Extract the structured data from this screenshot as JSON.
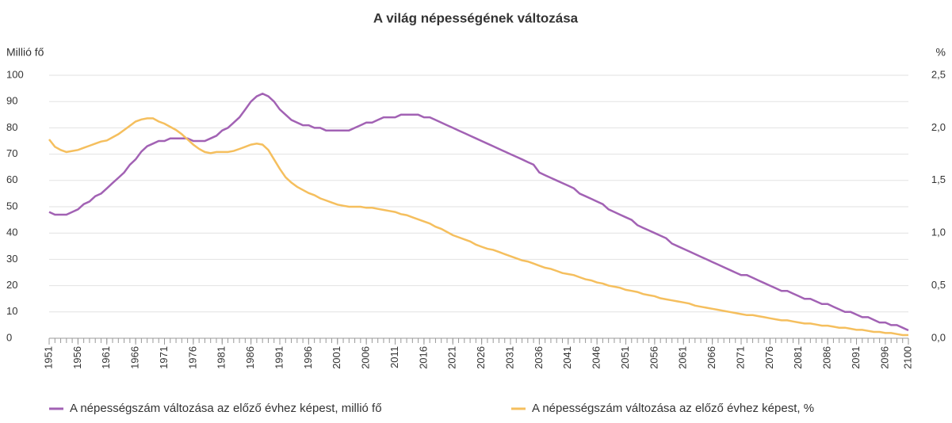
{
  "chart_data": {
    "type": "line",
    "title": "A világ népességének változása",
    "ylabel": "Millió fő",
    "y2label": "%",
    "x": [
      1951,
      1952,
      1953,
      1954,
      1955,
      1956,
      1957,
      1958,
      1959,
      1960,
      1961,
      1962,
      1963,
      1964,
      1965,
      1966,
      1967,
      1968,
      1969,
      1970,
      1971,
      1972,
      1973,
      1974,
      1975,
      1976,
      1977,
      1978,
      1979,
      1980,
      1981,
      1982,
      1983,
      1984,
      1985,
      1986,
      1987,
      1988,
      1989,
      1990,
      1991,
      1992,
      1993,
      1994,
      1995,
      1996,
      1997,
      1998,
      1999,
      2000,
      2001,
      2002,
      2003,
      2004,
      2005,
      2006,
      2007,
      2008,
      2009,
      2010,
      2011,
      2012,
      2013,
      2014,
      2015,
      2016,
      2017,
      2018,
      2019,
      2020,
      2021,
      2022,
      2023,
      2024,
      2025,
      2026,
      2027,
      2028,
      2029,
      2030,
      2031,
      2032,
      2033,
      2034,
      2035,
      2036,
      2037,
      2038,
      2039,
      2040,
      2041,
      2042,
      2043,
      2044,
      2045,
      2046,
      2047,
      2048,
      2049,
      2050,
      2051,
      2052,
      2053,
      2054,
      2055,
      2056,
      2057,
      2058,
      2059,
      2060,
      2061,
      2062,
      2063,
      2064,
      2065,
      2066,
      2067,
      2068,
      2069,
      2070,
      2071,
      2072,
      2073,
      2074,
      2075,
      2076,
      2077,
      2078,
      2079,
      2080,
      2081,
      2082,
      2083,
      2084,
      2085,
      2086,
      2087,
      2088,
      2089,
      2090,
      2091,
      2092,
      2093,
      2094,
      2095,
      2096,
      2097,
      2098,
      2099,
      2100
    ],
    "series": [
      {
        "name": "A népességszám változása az előző évhez képest, millió fő",
        "color": "#a262b4",
        "values": [
          48,
          47,
          47,
          47,
          48,
          49,
          51,
          52,
          54,
          55,
          57,
          59,
          61,
          63,
          66,
          68,
          71,
          73,
          74,
          75,
          75,
          76,
          76,
          76,
          76,
          75,
          75,
          75,
          76,
          77,
          79,
          80,
          82,
          84,
          87,
          90,
          92,
          93,
          92,
          90,
          87,
          85,
          83,
          82,
          81,
          81,
          80,
          80,
          79,
          79,
          79,
          79,
          79,
          80,
          81,
          82,
          82,
          83,
          84,
          84,
          84,
          85,
          85,
          85,
          85,
          84,
          84,
          83,
          82,
          81,
          80,
          79,
          78,
          77,
          76,
          75,
          74,
          73,
          72,
          71,
          70,
          69,
          68,
          67,
          66,
          63,
          62,
          61,
          60,
          59,
          58,
          57,
          55,
          54,
          53,
          52,
          51,
          49,
          48,
          47,
          46,
          45,
          43,
          42,
          41,
          40,
          39,
          38,
          36,
          35,
          34,
          33,
          32,
          31,
          30,
          29,
          28,
          27,
          26,
          25,
          24,
          24,
          23,
          22,
          21,
          20,
          19,
          18,
          18,
          17,
          16,
          15,
          15,
          14,
          13,
          13,
          12,
          11,
          10,
          10,
          9,
          8,
          8,
          7,
          6,
          6,
          5,
          5,
          4,
          3
        ]
      },
      {
        "name": "A népességszám változása az előző évhez képest, %",
        "color": "#f5bf5e",
        "axis": "y2",
        "values": [
          1.89,
          1.82,
          1.79,
          1.77,
          1.78,
          1.79,
          1.81,
          1.83,
          1.85,
          1.87,
          1.88,
          1.91,
          1.94,
          1.98,
          2.02,
          2.06,
          2.08,
          2.09,
          2.09,
          2.06,
          2.04,
          2.01,
          1.98,
          1.94,
          1.89,
          1.84,
          1.8,
          1.77,
          1.76,
          1.77,
          1.77,
          1.77,
          1.78,
          1.8,
          1.82,
          1.84,
          1.85,
          1.84,
          1.79,
          1.7,
          1.61,
          1.53,
          1.48,
          1.44,
          1.41,
          1.38,
          1.36,
          1.33,
          1.31,
          1.29,
          1.27,
          1.26,
          1.25,
          1.25,
          1.25,
          1.24,
          1.24,
          1.23,
          1.22,
          1.21,
          1.2,
          1.18,
          1.17,
          1.15,
          1.13,
          1.11,
          1.09,
          1.06,
          1.04,
          1.01,
          0.98,
          0.96,
          0.94,
          0.92,
          0.89,
          0.87,
          0.85,
          0.84,
          0.82,
          0.8,
          0.78,
          0.76,
          0.74,
          0.73,
          0.71,
          0.69,
          0.67,
          0.66,
          0.64,
          0.62,
          0.61,
          0.6,
          0.58,
          0.56,
          0.55,
          0.53,
          0.52,
          0.5,
          0.49,
          0.48,
          0.46,
          0.45,
          0.44,
          0.42,
          0.41,
          0.4,
          0.38,
          0.37,
          0.36,
          0.35,
          0.34,
          0.33,
          0.31,
          0.3,
          0.29,
          0.28,
          0.27,
          0.26,
          0.25,
          0.24,
          0.23,
          0.22,
          0.22,
          0.21,
          0.2,
          0.19,
          0.18,
          0.17,
          0.17,
          0.16,
          0.15,
          0.14,
          0.14,
          0.13,
          0.12,
          0.12,
          0.11,
          0.1,
          0.1,
          0.09,
          0.08,
          0.08,
          0.07,
          0.06,
          0.06,
          0.05,
          0.05,
          0.04,
          0.03,
          0.03
        ]
      }
    ],
    "xlim": [
      1951,
      2100
    ],
    "xticks": [
      1951,
      1956,
      1961,
      1966,
      1971,
      1976,
      1981,
      1986,
      1991,
      1996,
      2001,
      2006,
      2011,
      2016,
      2021,
      2026,
      2031,
      2036,
      2041,
      2046,
      2051,
      2056,
      2061,
      2066,
      2071,
      2076,
      2081,
      2086,
      2091,
      2096,
      2100
    ],
    "ylim": [
      0,
      100
    ],
    "yticks": [
      0,
      10,
      20,
      30,
      40,
      50,
      60,
      70,
      80,
      90,
      100
    ],
    "y2lim": [
      0,
      2.5
    ],
    "y2ticks": [
      {
        "value": 0,
        "label": "0,0"
      },
      {
        "value": 0.5,
        "label": "0,5"
      },
      {
        "value": 1,
        "label": "1,0"
      },
      {
        "value": 1.5,
        "label": "1,5"
      },
      {
        "value": 2,
        "label": "2,0"
      },
      {
        "value": 2.5,
        "label": "2,5"
      }
    ],
    "grid": true,
    "legend": "bottom"
  }
}
